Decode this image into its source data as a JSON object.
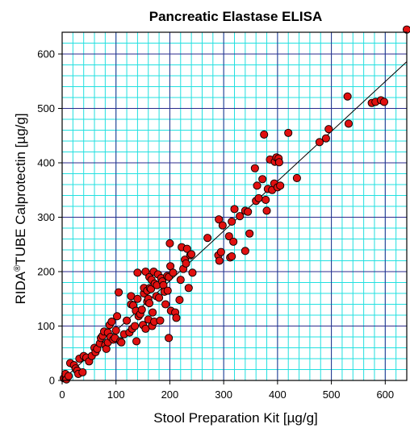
{
  "chart_data": {
    "type": "scatter",
    "title": "Pancreatic Elastase ELISA",
    "xlabel": "Stool Preparation Kit [µg/g]",
    "ylabel": {
      "prefix": "RIDA",
      "superscript": "®",
      "suffix": "TUBE Calprotectin [µg/g]"
    },
    "xlim": [
      0,
      640
    ],
    "ylim": [
      0,
      640
    ],
    "xticks": [
      0,
      100,
      200,
      300,
      400,
      500,
      600
    ],
    "yticks": [
      0,
      100,
      200,
      300,
      400,
      500,
      600
    ],
    "minor_step": 20,
    "grid": true,
    "colors": {
      "minor_grid": "#22e0e0",
      "major_grid": "#2a2a8c",
      "point_fill": "#e01010",
      "point_edge": "#000000",
      "regression": "#000000",
      "plot_border": "#000000"
    },
    "regression_line": {
      "from": [
        0,
        0
      ],
      "to": [
        640,
        586
      ]
    },
    "points": [
      [
        3,
        4
      ],
      [
        6,
        12
      ],
      [
        8,
        2
      ],
      [
        12,
        8
      ],
      [
        15,
        32
      ],
      [
        22,
        28
      ],
      [
        25,
        22
      ],
      [
        28,
        18
      ],
      [
        30,
        12
      ],
      [
        32,
        40
      ],
      [
        38,
        15
      ],
      [
        40,
        45
      ],
      [
        45,
        42
      ],
      [
        50,
        35
      ],
      [
        55,
        45
      ],
      [
        60,
        60
      ],
      [
        62,
        52
      ],
      [
        65,
        58
      ],
      [
        70,
        68
      ],
      [
        72,
        78
      ],
      [
        75,
        82
      ],
      [
        78,
        90
      ],
      [
        80,
        65
      ],
      [
        82,
        58
      ],
      [
        85,
        70
      ],
      [
        85,
        88
      ],
      [
        88,
        102
      ],
      [
        90,
        80
      ],
      [
        92,
        108
      ],
      [
        95,
        75
      ],
      [
        98,
        78
      ],
      [
        100,
        92
      ],
      [
        102,
        118
      ],
      [
        105,
        162
      ],
      [
        108,
        72
      ],
      [
        110,
        70
      ],
      [
        115,
        85
      ],
      [
        120,
        110
      ],
      [
        125,
        88
      ],
      [
        128,
        140
      ],
      [
        128,
        155
      ],
      [
        130,
        95
      ],
      [
        132,
        138
      ],
      [
        135,
        100
      ],
      [
        137,
        128
      ],
      [
        138,
        72
      ],
      [
        140,
        150
      ],
      [
        140,
        198
      ],
      [
        142,
        118
      ],
      [
        145,
        122
      ],
      [
        148,
        130
      ],
      [
        150,
        102
      ],
      [
        152,
        160
      ],
      [
        152,
        170
      ],
      [
        155,
        95
      ],
      [
        155,
        200
      ],
      [
        158,
        145
      ],
      [
        158,
        165
      ],
      [
        160,
        150
      ],
      [
        160,
        112
      ],
      [
        162,
        190
      ],
      [
        162,
        142
      ],
      [
        163,
        170
      ],
      [
        165,
        168
      ],
      [
        166,
        185
      ],
      [
        167,
        100
      ],
      [
        168,
        125
      ],
      [
        170,
        200
      ],
      [
        171,
        108
      ],
      [
        172,
        178
      ],
      [
        175,
        155
      ],
      [
        176,
        175
      ],
      [
        178,
        195
      ],
      [
        180,
        152
      ],
      [
        182,
        110
      ],
      [
        184,
        188
      ],
      [
        186,
        182
      ],
      [
        188,
        175
      ],
      [
        190,
        163
      ],
      [
        192,
        140
      ],
      [
        195,
        192
      ],
      [
        196,
        165
      ],
      [
        198,
        190
      ],
      [
        198,
        78
      ],
      [
        200,
        252
      ],
      [
        201,
        210
      ],
      [
        202,
        128
      ],
      [
        206,
        198
      ],
      [
        210,
        125
      ],
      [
        212,
        115
      ],
      [
        218,
        148
      ],
      [
        220,
        185
      ],
      [
        222,
        245
      ],
      [
        225,
        205
      ],
      [
        228,
        222
      ],
      [
        230,
        215
      ],
      [
        232,
        242
      ],
      [
        235,
        170
      ],
      [
        238,
        230
      ],
      [
        240,
        232
      ],
      [
        242,
        198
      ],
      [
        270,
        262
      ],
      [
        290,
        230
      ],
      [
        291,
        296
      ],
      [
        292,
        220
      ],
      [
        295,
        236
      ],
      [
        298,
        285
      ],
      [
        310,
        265
      ],
      [
        312,
        226
      ],
      [
        315,
        228
      ],
      [
        315,
        292
      ],
      [
        318,
        255
      ],
      [
        320,
        315
      ],
      [
        330,
        302
      ],
      [
        340,
        238
      ],
      [
        340,
        312
      ],
      [
        345,
        310
      ],
      [
        348,
        270
      ],
      [
        358,
        390
      ],
      [
        360,
        330
      ],
      [
        362,
        358
      ],
      [
        365,
        335
      ],
      [
        372,
        370
      ],
      [
        375,
        452
      ],
      [
        378,
        332
      ],
      [
        380,
        312
      ],
      [
        382,
        352
      ],
      [
        386,
        406
      ],
      [
        390,
        350
      ],
      [
        394,
        362
      ],
      [
        395,
        402
      ],
      [
        398,
        410
      ],
      [
        400,
        355
      ],
      [
        402,
        408
      ],
      [
        403,
        401
      ],
      [
        405,
        358
      ],
      [
        420,
        455
      ],
      [
        436,
        372
      ],
      [
        478,
        438
      ],
      [
        490,
        445
      ],
      [
        495,
        462
      ],
      [
        530,
        522
      ],
      [
        532,
        472
      ],
      [
        575,
        510
      ],
      [
        582,
        512
      ],
      [
        592,
        515
      ],
      [
        598,
        512
      ],
      [
        640,
        645
      ]
    ]
  }
}
